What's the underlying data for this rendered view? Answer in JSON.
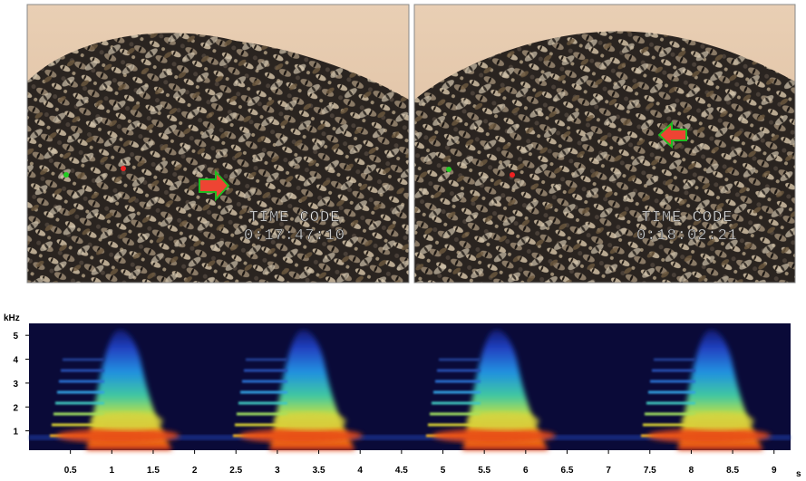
{
  "photos": [
    {
      "label": "TIME CODE",
      "timecode": "0:17:47:10"
    },
    {
      "label": "TIME CODE",
      "timecode": "0:18:02:21"
    }
  ],
  "spectrogram": {
    "y_label": "kHz",
    "x_unit": "s",
    "xlim": [
      0,
      9.2
    ],
    "ylim": [
      0,
      5.5
    ],
    "xticks": [
      0.5,
      1,
      1.5,
      2,
      2.5,
      3,
      3.5,
      4,
      4.5,
      5,
      5.5,
      6,
      6.5,
      7,
      7.5,
      8,
      8.5,
      9
    ],
    "yticks": [
      1,
      2,
      3,
      4,
      5
    ]
  }
}
